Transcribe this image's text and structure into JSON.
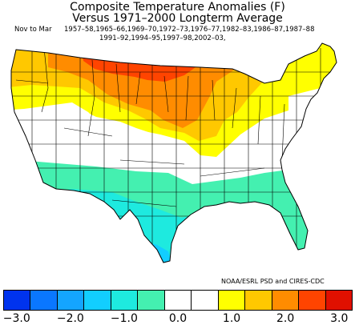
{
  "title_line1": "Composite Temperature Anomalies (F)",
  "title_line2": "Versus 1971–2000 Longterm Average",
  "period": "Nov to Mar",
  "years_line1": "1957–58,1965–66,1969–70,1972–73,1976–77,1982–83,1986–87,1987–88",
  "years_line2": "1991–92,1994–95,1997–98,2002–03,",
  "credit": "NOAA/ESRL PSD and CIRES-CDC",
  "legend": {
    "colors": [
      "#0033ee",
      "#0a77ff",
      "#14a5ff",
      "#12ceff",
      "#1eeadf",
      "#44f0b0",
      "#ffffff",
      "#ffffff",
      "#ffff00",
      "#ffc800",
      "#ff8c00",
      "#ff4400",
      "#e01000"
    ],
    "tick_labels": [
      "−3.0",
      "−2.0",
      "−1.0",
      "0.0",
      "1.0",
      "2.0",
      "3.0"
    ],
    "tick_values": [
      -3.0,
      -2.0,
      -1.0,
      0.0,
      1.0,
      2.0,
      3.0
    ]
  },
  "map_regions": {
    "northern_plains_core": "+2.5 to 3.0",
    "upper_midwest": "+2.0 to 2.5",
    "great_lakes_and_northwest": "+1.0 to 2.0",
    "central_belt": "-0.5 to +0.5",
    "southern_tier": "-0.5 to -1.0",
    "south_texas_and_florida": "-1.0 to -1.5"
  }
}
